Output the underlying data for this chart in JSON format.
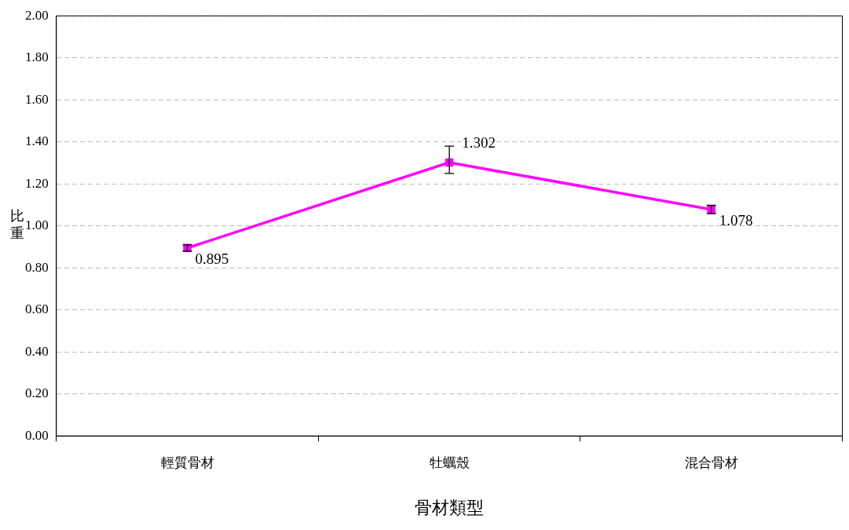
{
  "chart_data": {
    "type": "line",
    "xlabel": "骨材類型",
    "ylabel": "比重",
    "categories": [
      "輕質骨材",
      "牡蠣殼",
      "混合骨材"
    ],
    "series": [
      {
        "color": "#ff00ff",
        "values": [
          0.895,
          1.302,
          1.078
        ],
        "errors": [
          0.015,
          [
            1.25,
            1.38
          ],
          0.02
        ]
      }
    ],
    "data_labels": true,
    "marker": "square",
    "line_style": "solid",
    "grid": "y",
    "legend": false,
    "ylim": [
      0,
      2
    ],
    "yticks": [
      {
        "value": 0,
        "label": "0.00"
      },
      {
        "value": 0.2,
        "label": "0.20"
      },
      {
        "value": 0.4,
        "label": "0.40"
      },
      {
        "value": 0.6,
        "label": "0.60"
      },
      {
        "value": 0.8,
        "label": "0.80"
      },
      {
        "value": 1,
        "label": "1.00"
      },
      {
        "value": 1.2,
        "label": "1.20"
      },
      {
        "value": 1.4,
        "label": "1.40"
      },
      {
        "value": 1.6,
        "label": "1.60"
      },
      {
        "value": 1.8,
        "label": "1.80"
      },
      {
        "value": 2,
        "label": "2.00"
      }
    ]
  }
}
